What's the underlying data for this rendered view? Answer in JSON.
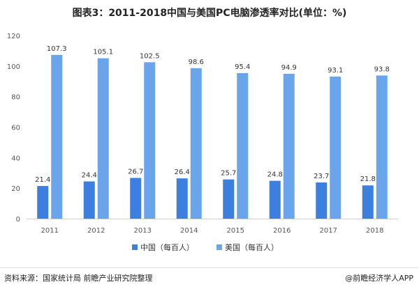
{
  "colors": {
    "china": "#3c7fde",
    "usa": "#6aa5ec"
  },
  "chart_data": {
    "type": "bar",
    "title": "图表3：2011-2018中国与美国PC电脑渗透率对比(单位：%)",
    "categories": [
      "2011",
      "2012",
      "2013",
      "2014",
      "2015",
      "2016",
      "2017",
      "2018"
    ],
    "series": [
      {
        "name": "中国（每百人）",
        "values": [
          21.4,
          24.4,
          26.7,
          26.4,
          25.7,
          24.8,
          23.7,
          21.8
        ]
      },
      {
        "name": "美国（每百人）",
        "values": [
          107.3,
          105.1,
          102.5,
          98.6,
          95.4,
          94.9,
          93.1,
          93.8
        ]
      }
    ],
    "y_ticks": [
      "0",
      "20",
      "40",
      "60",
      "80",
      "100",
      "120"
    ],
    "ylim": [
      0,
      120
    ],
    "grid": false,
    "legend_position": "bottom",
    "xlabel": "",
    "ylabel": ""
  },
  "footer": {
    "source": "资料来源：国家统计局 前瞻产业研究院整理",
    "brand": "@前瞻经济学人APP"
  }
}
